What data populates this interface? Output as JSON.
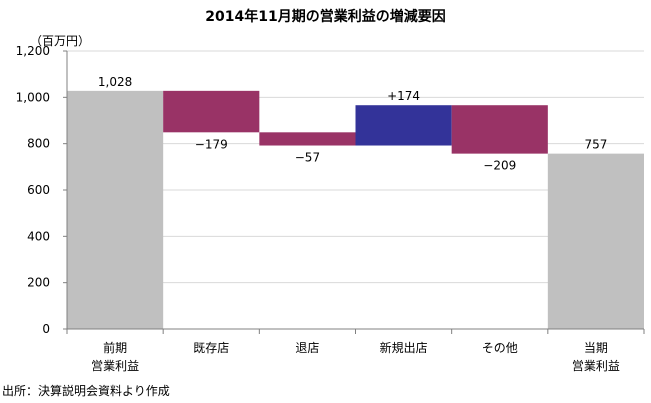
{
  "title": "2014年11月期の営業利益の増減要因",
  "unit_label": "（百万円）",
  "source": "出所：決算説明会資料より作成",
  "colors": {
    "total": "#c0c0c0",
    "decrease": "#993366",
    "increase": "#333399",
    "grid": "#d9d9d9",
    "axis": "#808080"
  },
  "chart_data": {
    "type": "bar",
    "subtype": "waterfall",
    "title": "2014年11月期の営業利益の増減要因",
    "ylabel": "（百万円）",
    "ylim": [
      0,
      1200
    ],
    "yticks": [
      "0",
      "200",
      "400",
      "600",
      "800",
      "1,000",
      "1,200"
    ],
    "grid": true,
    "categories": [
      [
        "前期",
        "営業利益"
      ],
      [
        "既存店"
      ],
      [
        "退店"
      ],
      [
        "新規出店"
      ],
      [
        "その他"
      ],
      [
        "当期",
        "営業利益"
      ]
    ],
    "bars": [
      {
        "kind": "total",
        "base": 0,
        "top": 1028,
        "label": "1,028",
        "label_pos": "above"
      },
      {
        "kind": "decrease",
        "base": 849,
        "top": 1028,
        "label": "−179",
        "label_pos": "below"
      },
      {
        "kind": "decrease",
        "base": 792,
        "top": 849,
        "label": "−57",
        "label_pos": "below"
      },
      {
        "kind": "increase",
        "base": 792,
        "top": 966,
        "label": "+174",
        "label_pos": "above"
      },
      {
        "kind": "decrease",
        "base": 757,
        "top": 966,
        "label": "−209",
        "label_pos": "below"
      },
      {
        "kind": "total",
        "base": 0,
        "top": 757,
        "label": "757",
        "label_pos": "above"
      }
    ]
  }
}
